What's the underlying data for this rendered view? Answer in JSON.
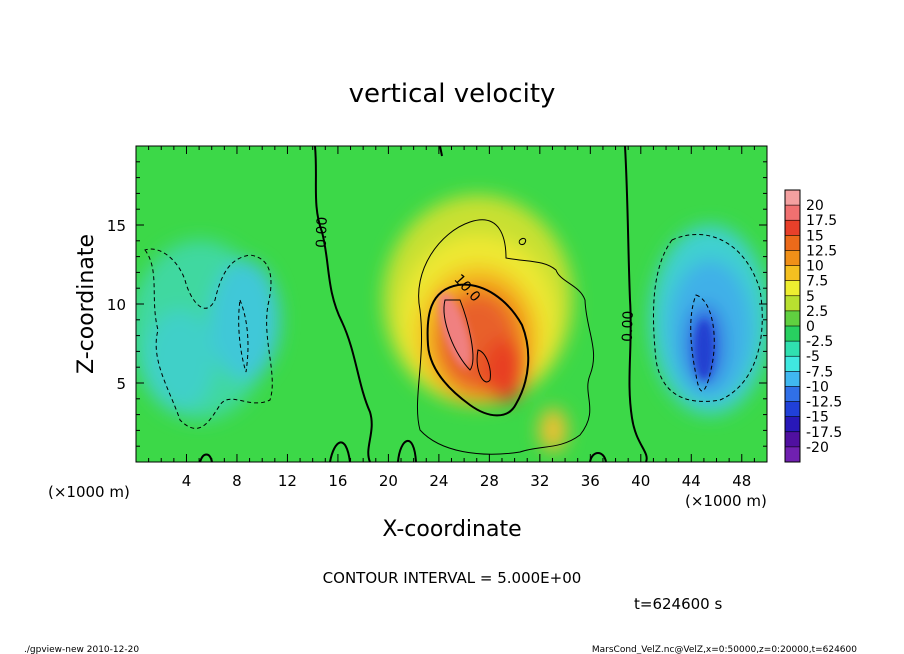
{
  "chart_data": {
    "type": "heatmap",
    "title": "vertical velocity",
    "xlabel": "X-coordinate",
    "ylabel": "Z-coordinate",
    "x_unit": "(×1000 m)",
    "y_unit": "(×1000 m)",
    "x_ticks": [
      4,
      8,
      12,
      16,
      20,
      24,
      28,
      32,
      36,
      40,
      44,
      48
    ],
    "y_ticks": [
      5,
      10,
      15
    ],
    "xlim": [
      0,
      50
    ],
    "ylim": [
      0,
      20
    ],
    "colorbar": {
      "levels": [
        "20",
        "17.5",
        "15",
        "12.5",
        "10",
        "7.5",
        "5",
        "2.5",
        "0",
        "-2.5",
        "-5",
        "-7.5",
        "-10",
        "-12.5",
        "-15",
        "-17.5",
        "-20"
      ],
      "colors": [
        "#f4a0a0",
        "#f07070",
        "#e8402a",
        "#ec6a1a",
        "#f09018",
        "#f4c020",
        "#eeee30",
        "#b8e030",
        "#60d040",
        "#28d060",
        "#30e0b0",
        "#40e8e0",
        "#40b8f0",
        "#3070e8",
        "#2040d8",
        "#2818b8",
        "#5010a0",
        "#7020b0"
      ]
    },
    "contour_labels": [
      "0.00",
      "10.0",
      "0.00"
    ],
    "contour_interval": "CONTOUR INTERVAL = 5.000E+00",
    "time_label": "t=624600 s"
  },
  "footer": {
    "left": "./gpview-new   2010-12-20",
    "right": "MarsCond_VelZ.nc@VelZ,x=0:50000,z=0:20000,t=624600"
  }
}
